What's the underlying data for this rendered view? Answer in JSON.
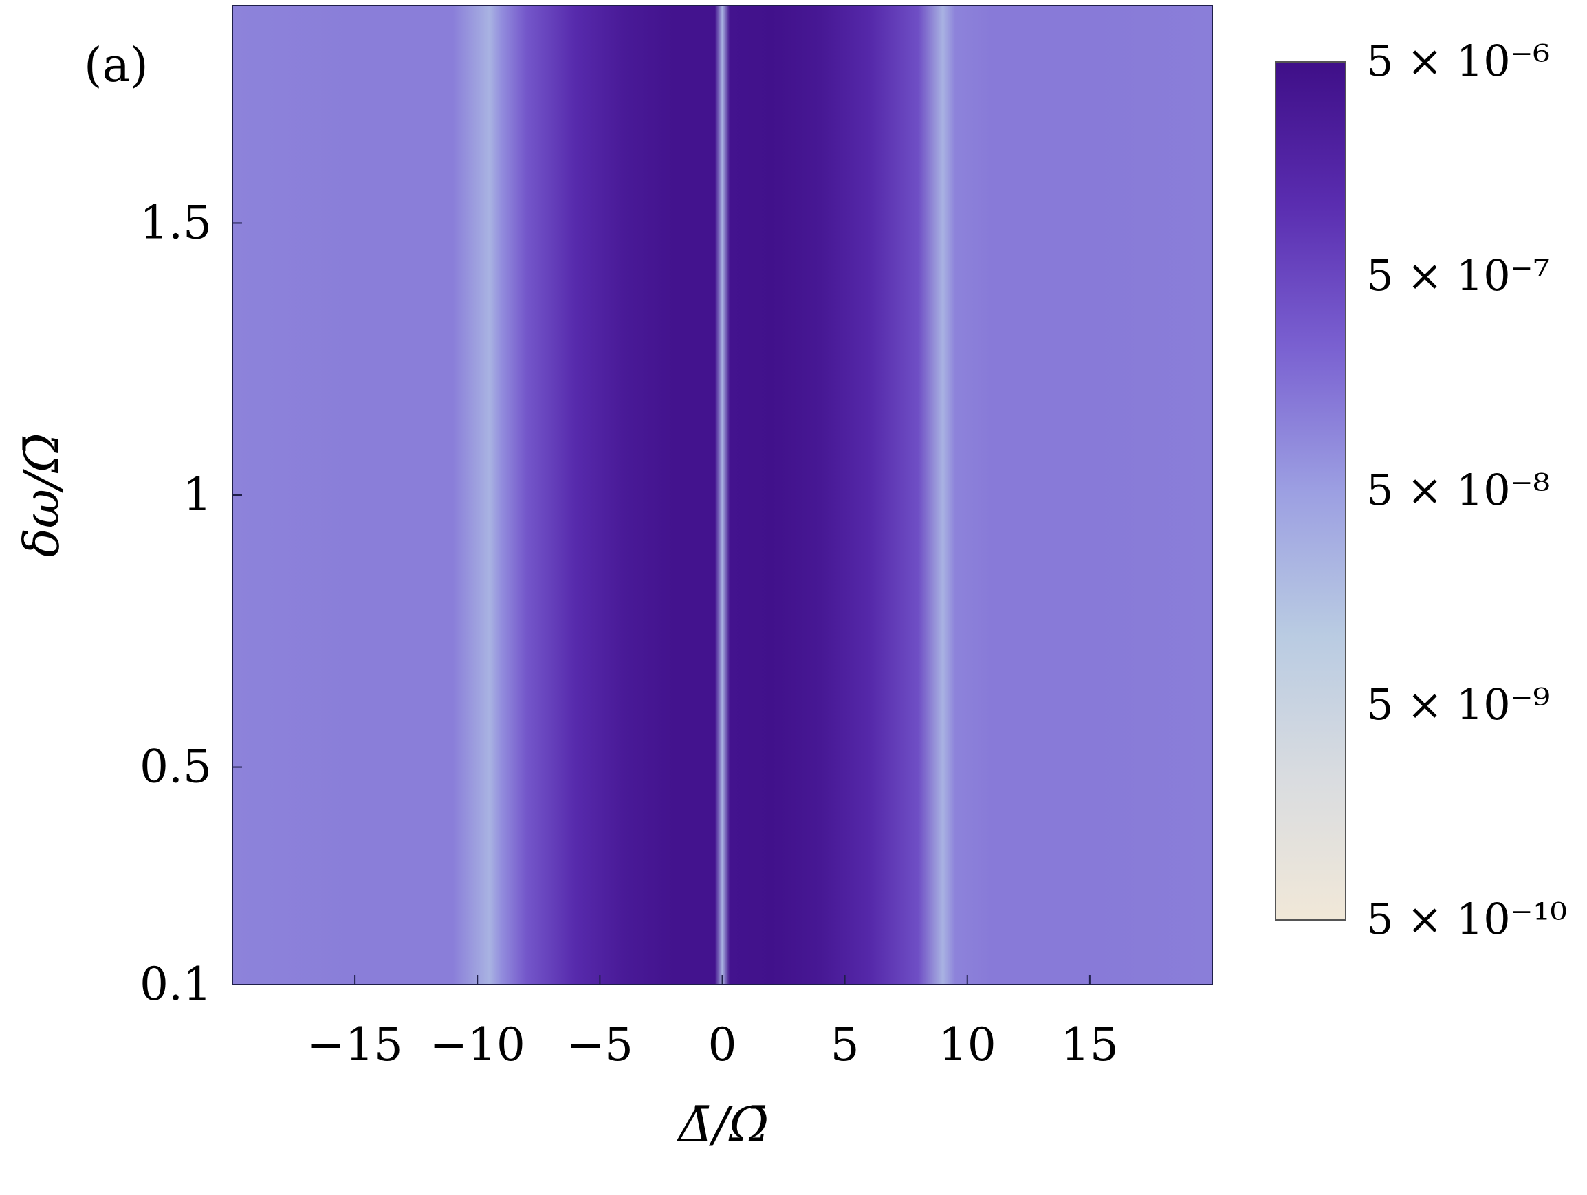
{
  "chart_data": {
    "type": "heatmap",
    "panel_label": "(a)",
    "xlabel": "Δ̄/Ω̄",
    "ylabel": "δω/Ω̄",
    "xlim": [
      -20,
      20
    ],
    "ylim": [
      0.1,
      1.9
    ],
    "x_ticks": [
      -15,
      -10,
      -5,
      0,
      5,
      10,
      15
    ],
    "x_tick_labels": [
      "−15",
      "−10",
      "−5",
      "0",
      "5",
      "10",
      "15"
    ],
    "y_ticks": [
      0.1,
      0.5,
      1,
      1.5
    ],
    "y_tick_labels": [
      "0.1",
      "0.5",
      "1",
      "1.5"
    ],
    "colorbar": {
      "scale": "log",
      "range": [
        5e-10,
        5e-06
      ],
      "ticks": [
        5e-06,
        5e-07,
        5e-08,
        5e-09,
        5e-10
      ],
      "tick_labels": [
        "5 × 10⁻⁶",
        "5 × 10⁻⁷",
        "5 × 10⁻⁸",
        "5 × 10⁻⁹",
        "5 × 10⁻¹⁰"
      ],
      "colors": [
        "#f1e8d8",
        "#d9dce0",
        "#b9cbe2",
        "#9c9fe2",
        "#7a61d1",
        "#5a2db0",
        "#3f0f88"
      ]
    },
    "profile_along_x": {
      "description_units": "log10 of plotted quantity, independent of δω/Ω̄",
      "x": [
        -20,
        -15,
        -11,
        -9.5,
        -9,
        -8,
        -6,
        -4,
        -2,
        -0.3,
        0,
        0.3,
        2,
        4,
        6,
        8,
        9,
        9.5,
        11,
        15,
        20
      ],
      "log10_value": [
        -7.0,
        -6.95,
        -6.95,
        -7.6,
        -7.1,
        -6.5,
        -5.9,
        -5.55,
        -5.4,
        -5.4,
        -7.6,
        -5.4,
        -5.35,
        -5.5,
        -5.85,
        -6.4,
        -7.6,
        -7.0,
        -6.9,
        -6.9,
        -6.95
      ]
    }
  }
}
